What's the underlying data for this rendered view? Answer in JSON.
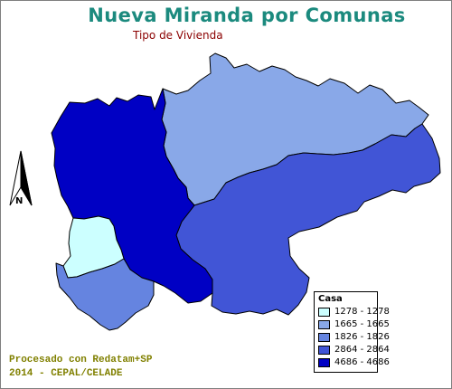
{
  "title": "Nueva Miranda por Comunas",
  "subtitle": "Tipo de Vivienda",
  "north_arrow": {
    "icon": "north-arrow-icon",
    "label": "N"
  },
  "legend": {
    "title": "Casa",
    "classes": [
      {
        "label": "1278 - 1278",
        "value": 1278,
        "color": "#ccffff"
      },
      {
        "label": "1665 - 1665",
        "value": 1665,
        "color": "#89a8e8"
      },
      {
        "label": "1826 - 1826",
        "value": 1826,
        "color": "#6584e0"
      },
      {
        "label": "2864 - 2864",
        "value": 2864,
        "color": "#4155d6"
      },
      {
        "label": "4686 - 4686",
        "value": 4686,
        "color": "#0000c4"
      }
    ]
  },
  "comunas": [
    {
      "value": 1278,
      "color": "#ccffff"
    },
    {
      "value": 1665,
      "color": "#89a8e8"
    },
    {
      "value": 1826,
      "color": "#6584e0"
    },
    {
      "value": 2864,
      "color": "#4155d6"
    },
    {
      "value": 4686,
      "color": "#0000c4"
    }
  ],
  "credits": {
    "line1": "Procesado con Redatam+SP",
    "line2": "2014 - CEPAL/CELADE"
  }
}
